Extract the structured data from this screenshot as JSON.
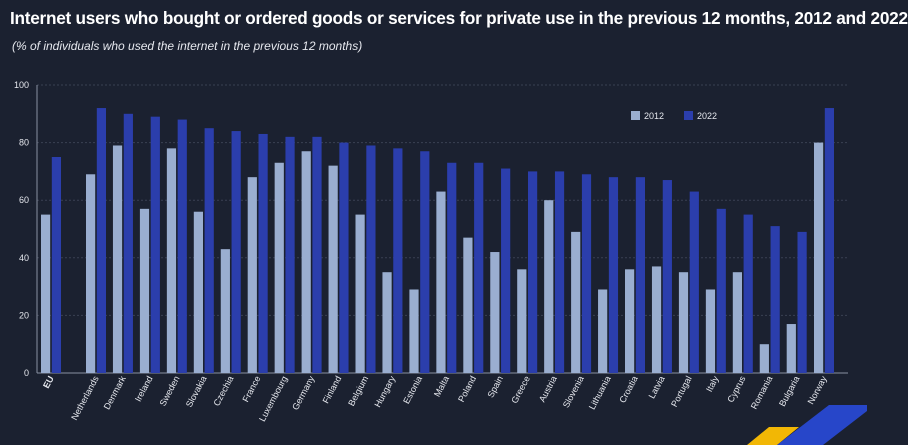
{
  "chart_data": {
    "type": "bar",
    "title": "Internet users who bought or ordered goods or services for private use in the previous 12 months, 2012 and 2022",
    "subtitle": "(% of individuals who used the internet in the previous 12 months)",
    "xlabel": "",
    "ylabel": "",
    "ylim": [
      0,
      100
    ],
    "yticks": [
      "0",
      "20",
      "40",
      "60",
      "80",
      "100"
    ],
    "grid": true,
    "legend_position": "top-right",
    "categories": [
      "EU",
      "Netherlands",
      "Denmark",
      "Ireland",
      "Sweden",
      "Slovakia",
      "Czechia",
      "France",
      "Luxembourg",
      "Germany",
      "Finland",
      "Belgium",
      "Hungary",
      "Estonia",
      "Malta",
      "Poland",
      "Spain",
      "Greece",
      "Austria",
      "Slovenia",
      "Lithuania",
      "Croatia",
      "Latvia",
      "Portugal",
      "Italy",
      "Cyprus",
      "Romania",
      "Bulgaria",
      "Norway"
    ],
    "series": [
      {
        "name": "2012",
        "color": "#9aaed0",
        "values": [
          55,
          69,
          79,
          57,
          78,
          56,
          43,
          68,
          73,
          77,
          72,
          55,
          35,
          29,
          63,
          47,
          42,
          36,
          60,
          49,
          29,
          36,
          37,
          35,
          29,
          35,
          10,
          17,
          80
        ]
      },
      {
        "name": "2022",
        "color": "#2b3eac",
        "values": [
          75,
          92,
          90,
          89,
          88,
          85,
          84,
          83,
          82,
          82,
          80,
          79,
          78,
          77,
          73,
          73,
          71,
          70,
          70,
          69,
          68,
          68,
          67,
          63,
          57,
          55,
          51,
          49,
          92
        ]
      }
    ]
  },
  "colors": {
    "background": "#1b2130",
    "grid": "#3a4152",
    "accent_yellow": "#f2b705",
    "accent_blue": "#2746c9"
  }
}
